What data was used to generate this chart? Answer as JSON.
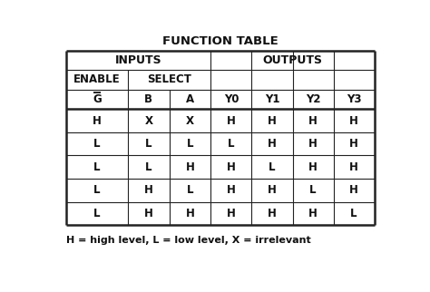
{
  "title": "FUNCTION TABLE",
  "footnote": "H = high level, L = low level, X = irrelevant",
  "bg_color": "#ffffff",
  "text_color": "#111111",
  "table_edge_color": "#222222",
  "data_rows": [
    [
      "H",
      "X",
      "X",
      "H",
      "H",
      "H",
      "H"
    ],
    [
      "L",
      "L",
      "L",
      "L",
      "H",
      "H",
      "H"
    ],
    [
      "L",
      "L",
      "H",
      "H",
      "L",
      "H",
      "H"
    ],
    [
      "L",
      "H",
      "L",
      "H",
      "H",
      "L",
      "H"
    ],
    [
      "L",
      "H",
      "H",
      "H",
      "H",
      "H",
      "L"
    ]
  ],
  "figsize": [
    4.74,
    3.22
  ],
  "dpi": 100,
  "title_fontsize": 9.5,
  "header_fontsize": 8.5,
  "cell_fontsize": 8.5,
  "footnote_fontsize": 8.0
}
